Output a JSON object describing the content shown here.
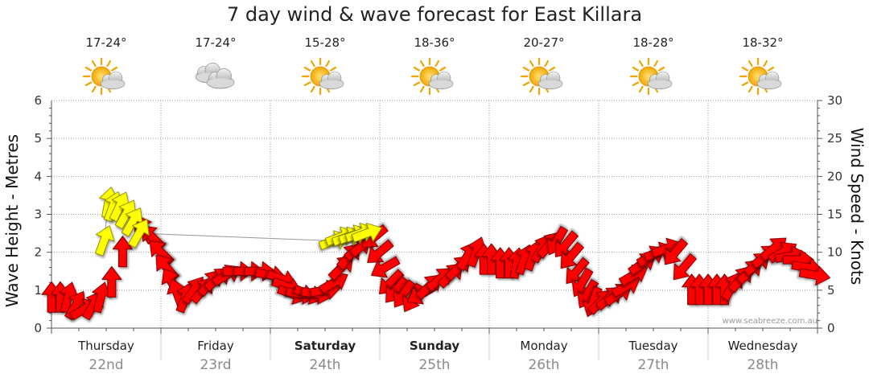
{
  "title": "7 day wind & wave forecast for East Killara",
  "watermark": "www.seabreeze.com.au",
  "colors": {
    "wind_arrow": "#ff0000",
    "wave_arrow": "#ffff00",
    "arrow_outline": "#7a0000",
    "wave_outline": "#8a8a00",
    "grid": "#9a9a9a",
    "date": "#8a8a8a"
  },
  "days": [
    {
      "name": "Thursday",
      "date": "22nd",
      "temp": "17-24°",
      "icon": "partly-cloudy-icon",
      "bold": false
    },
    {
      "name": "Friday",
      "date": "23rd",
      "temp": "17-24°",
      "icon": "cloudy-icon",
      "bold": false
    },
    {
      "name": "Saturday",
      "date": "24th",
      "temp": "15-28°",
      "icon": "partly-cloudy-icon",
      "bold": true
    },
    {
      "name": "Sunday",
      "date": "25th",
      "temp": "18-36°",
      "icon": "partly-cloudy-icon",
      "bold": true
    },
    {
      "name": "Monday",
      "date": "26th",
      "temp": "20-27°",
      "icon": "partly-cloudy-icon",
      "bold": false
    },
    {
      "name": "Tuesday",
      "date": "27th",
      "temp": "18-28°",
      "icon": "partly-cloudy-icon",
      "bold": false
    },
    {
      "name": "Wednesday",
      "date": "28th",
      "temp": "18-32°",
      "icon": "partly-cloudy-icon",
      "bold": false
    }
  ],
  "chart_data": {
    "type": "line",
    "x_unit": "days",
    "left_axis": {
      "label": "Wave Height - Metres",
      "min": 0,
      "max": 6,
      "ticks": [
        0,
        1,
        2,
        3,
        4,
        5,
        6
      ]
    },
    "right_axis": {
      "label": "Wind Speed - Knots",
      "min": 0,
      "max": 30,
      "ticks": [
        0,
        5,
        10,
        15,
        20,
        25,
        30
      ]
    },
    "grid": true,
    "wind": [
      {
        "t": 0.0,
        "v": 4,
        "d": 0
      },
      {
        "t": 0.08,
        "v": 4,
        "d": 0
      },
      {
        "t": 0.15,
        "v": 4,
        "d": 15
      },
      {
        "t": 0.22,
        "v": 3,
        "d": 30
      },
      {
        "t": 0.3,
        "v": 2.5,
        "d": 60
      },
      {
        "t": 0.38,
        "v": 3,
        "d": 30
      },
      {
        "t": 0.45,
        "v": 4,
        "d": 15
      },
      {
        "t": 0.55,
        "v": 6,
        "d": 0
      },
      {
        "t": 0.65,
        "v": 10,
        "d": 0
      },
      {
        "t": 0.85,
        "v": 13,
        "d": -30
      },
      {
        "t": 0.92,
        "v": 12,
        "d": -45
      },
      {
        "t": 1.0,
        "v": 10,
        "d": -45
      },
      {
        "t": 1.05,
        "v": 8,
        "d": -40
      },
      {
        "t": 1.1,
        "v": 6,
        "d": -30
      },
      {
        "t": 1.15,
        "v": 4.5,
        "d": -20
      },
      {
        "t": 1.22,
        "v": 4,
        "d": 20
      },
      {
        "t": 1.3,
        "v": 5,
        "d": 35
      },
      {
        "t": 1.38,
        "v": 5,
        "d": 40
      },
      {
        "t": 1.45,
        "v": 6,
        "d": 40
      },
      {
        "t": 1.52,
        "v": 6.5,
        "d": 50
      },
      {
        "t": 1.6,
        "v": 7,
        "d": 60
      },
      {
        "t": 1.7,
        "v": 7.5,
        "d": 90
      },
      {
        "t": 1.8,
        "v": 7.5,
        "d": 90
      },
      {
        "t": 1.9,
        "v": 7.5,
        "d": 90
      },
      {
        "t": 2.0,
        "v": 7,
        "d": 100
      },
      {
        "t": 2.1,
        "v": 6.5,
        "d": 110
      },
      {
        "t": 2.15,
        "v": 5.5,
        "d": 110
      },
      {
        "t": 2.2,
        "v": 4.5,
        "d": 110
      },
      {
        "t": 2.28,
        "v": 4.5,
        "d": 100
      },
      {
        "t": 2.35,
        "v": 4.5,
        "d": 110
      },
      {
        "t": 2.42,
        "v": 4.5,
        "d": 100
      },
      {
        "t": 2.5,
        "v": 5,
        "d": 80
      },
      {
        "t": 2.58,
        "v": 6,
        "d": 60
      },
      {
        "t": 2.65,
        "v": 8,
        "d": 45
      },
      {
        "t": 2.72,
        "v": 9.5,
        "d": 40
      },
      {
        "t": 2.8,
        "v": 10.5,
        "d": 50
      },
      {
        "t": 2.85,
        "v": 11,
        "d": 50
      },
      {
        "t": 2.95,
        "v": 12,
        "d": -130
      },
      {
        "t": 3.0,
        "v": 10,
        "d": -130
      },
      {
        "t": 3.05,
        "v": 8,
        "d": -120
      },
      {
        "t": 3.1,
        "v": 6,
        "d": -135
      },
      {
        "t": 3.15,
        "v": 5,
        "d": -140
      },
      {
        "t": 3.22,
        "v": 4.5,
        "d": -145
      },
      {
        "t": 3.3,
        "v": 4,
        "d": -150
      },
      {
        "t": 3.38,
        "v": 4.5,
        "d": -120
      },
      {
        "t": 3.45,
        "v": 5.5,
        "d": 45
      },
      {
        "t": 3.55,
        "v": 6.5,
        "d": 50
      },
      {
        "t": 3.65,
        "v": 7,
        "d": 45
      },
      {
        "t": 3.72,
        "v": 8,
        "d": 45
      },
      {
        "t": 3.8,
        "v": 9.5,
        "d": 30
      },
      {
        "t": 3.88,
        "v": 10,
        "d": 20
      },
      {
        "t": 3.95,
        "v": 9,
        "d": 0
      },
      {
        "t": 4.02,
        "v": 9,
        "d": 0
      },
      {
        "t": 4.1,
        "v": 8.5,
        "d": 0
      },
      {
        "t": 4.18,
        "v": 8.5,
        "d": 0
      },
      {
        "t": 4.25,
        "v": 8.5,
        "d": 10
      },
      {
        "t": 4.32,
        "v": 9,
        "d": 20
      },
      {
        "t": 4.4,
        "v": 9.5,
        "d": 20
      },
      {
        "t": 4.48,
        "v": 10.5,
        "d": 30
      },
      {
        "t": 4.55,
        "v": 11,
        "d": 40
      },
      {
        "t": 4.62,
        "v": 11.5,
        "d": -150
      },
      {
        "t": 4.7,
        "v": 11,
        "d": -140
      },
      {
        "t": 4.75,
        "v": 9.5,
        "d": -140
      },
      {
        "t": 4.8,
        "v": 7.5,
        "d": -140
      },
      {
        "t": 4.85,
        "v": 6,
        "d": -150
      },
      {
        "t": 4.9,
        "v": 4.5,
        "d": -150
      },
      {
        "t": 4.95,
        "v": 3.5,
        "d": -160
      },
      {
        "t": 5.02,
        "v": 3.5,
        "d": 45
      },
      {
        "t": 5.1,
        "v": 4,
        "d": 50
      },
      {
        "t": 5.18,
        "v": 4.5,
        "d": 55
      },
      {
        "t": 5.25,
        "v": 5.5,
        "d": 60
      },
      {
        "t": 5.32,
        "v": 7,
        "d": 60
      },
      {
        "t": 5.4,
        "v": 8.5,
        "d": 55
      },
      {
        "t": 5.48,
        "v": 9.5,
        "d": 60
      },
      {
        "t": 5.55,
        "v": 10,
        "d": 70
      },
      {
        "t": 5.62,
        "v": 10.5,
        "d": 70
      },
      {
        "t": 5.7,
        "v": 10,
        "d": -140
      },
      {
        "t": 5.78,
        "v": 8,
        "d": -140
      },
      {
        "t": 5.85,
        "v": 5,
        "d": 0
      },
      {
        "t": 5.92,
        "v": 5,
        "d": 0
      },
      {
        "t": 6.0,
        "v": 5,
        "d": 0
      },
      {
        "t": 6.08,
        "v": 5,
        "d": 0
      },
      {
        "t": 6.15,
        "v": 5,
        "d": 0
      },
      {
        "t": 6.22,
        "v": 5.5,
        "d": 30
      },
      {
        "t": 6.3,
        "v": 6.5,
        "d": 40
      },
      {
        "t": 6.38,
        "v": 7.5,
        "d": 45
      },
      {
        "t": 6.45,
        "v": 8.5,
        "d": 50
      },
      {
        "t": 6.52,
        "v": 9.5,
        "d": 50
      },
      {
        "t": 6.6,
        "v": 10.5,
        "d": 50
      },
      {
        "t": 6.68,
        "v": 10,
        "d": 60
      },
      {
        "t": 6.75,
        "v": 9.5,
        "d": 80
      },
      {
        "t": 6.82,
        "v": 9,
        "d": 90
      },
      {
        "t": 6.9,
        "v": 8,
        "d": 100
      },
      {
        "t": 6.97,
        "v": 7,
        "d": 100
      }
    ],
    "waves": [
      {
        "t": 0.48,
        "v": 2.3,
        "d": 20
      },
      {
        "t": 0.52,
        "v": 3.3,
        "d": 10
      },
      {
        "t": 0.56,
        "v": 3.2,
        "d": 20
      },
      {
        "t": 0.62,
        "v": 3.2,
        "d": 25
      },
      {
        "t": 0.68,
        "v": 3.0,
        "d": 30
      },
      {
        "t": 0.74,
        "v": 2.8,
        "d": 30
      },
      {
        "t": 0.8,
        "v": 2.5,
        "d": 30
      },
      {
        "t": 2.58,
        "v": 2.3,
        "d": 70
      },
      {
        "t": 2.64,
        "v": 2.4,
        "d": 70
      },
      {
        "t": 2.7,
        "v": 2.4,
        "d": 70
      },
      {
        "t": 2.76,
        "v": 2.45,
        "d": 70
      },
      {
        "t": 2.82,
        "v": 2.5,
        "d": 70
      },
      {
        "t": 2.88,
        "v": 2.5,
        "d": 70
      }
    ]
  }
}
